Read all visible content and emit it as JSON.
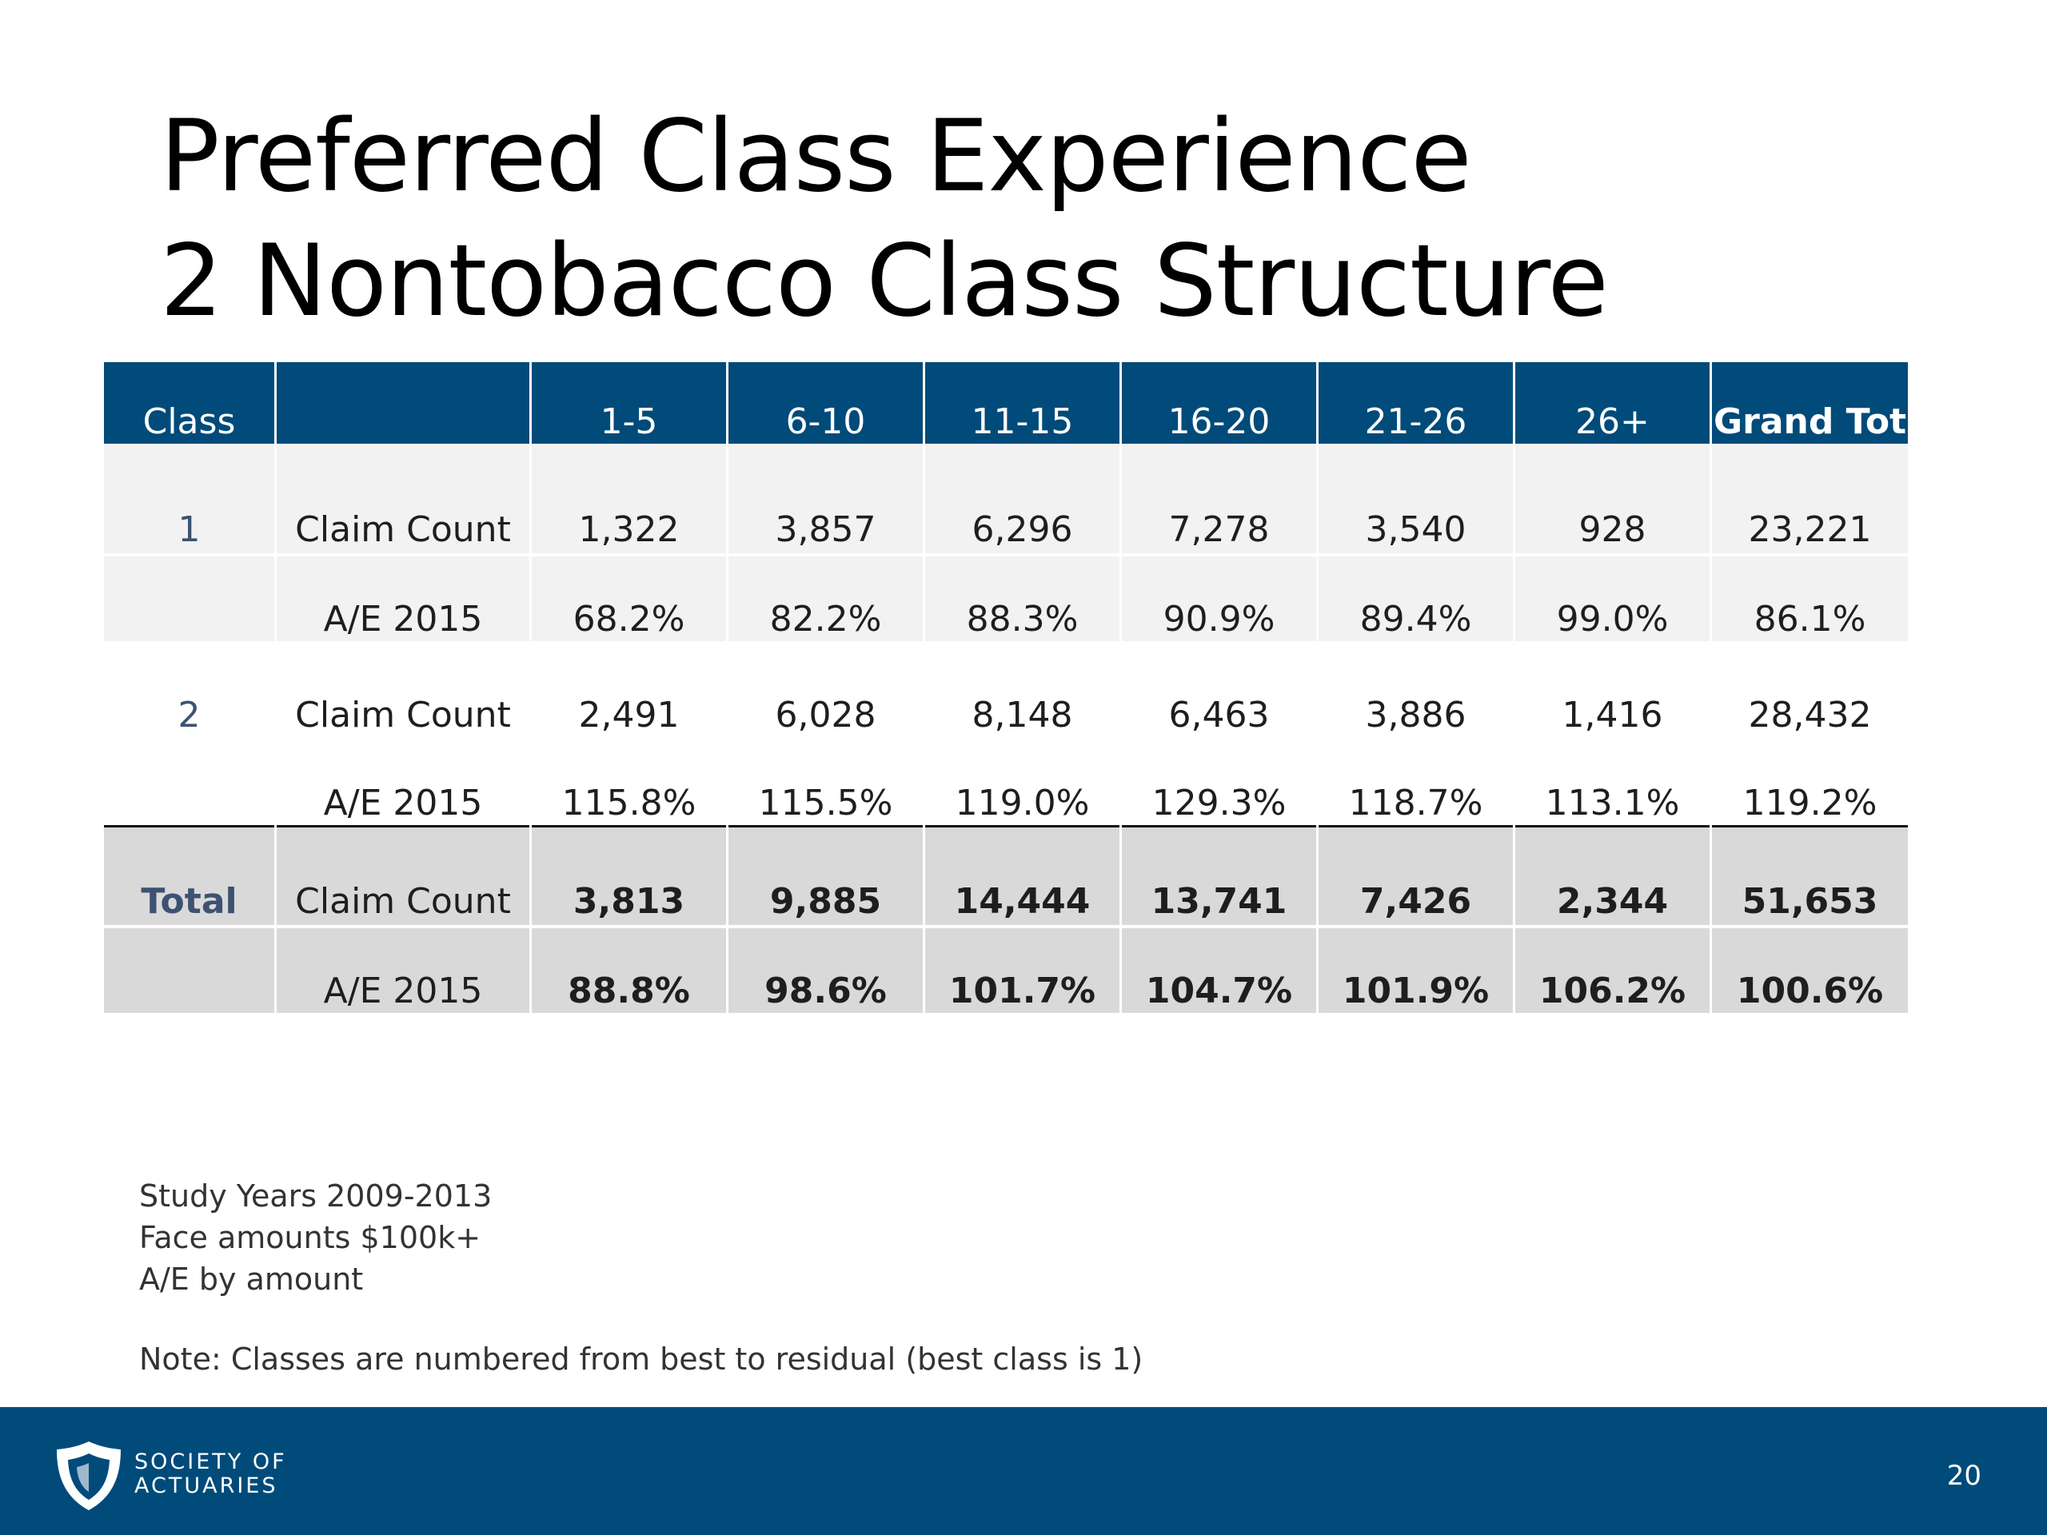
{
  "title": {
    "line1": "Preferred Class Experience",
    "line2": "2 Nontobacco Class Structure"
  },
  "table": {
    "headers": [
      "Class",
      "",
      "1-5",
      "6-10",
      "11-15",
      "16-20",
      "21-26",
      "26+",
      "Grand Total"
    ],
    "groups": [
      {
        "class": "1",
        "rows": [
          {
            "metric": "Claim Count",
            "values": [
              "1,322",
              "3,857",
              "6,296",
              "7,278",
              "3,540",
              "928",
              "23,221"
            ]
          },
          {
            "metric": "A/E 2015",
            "values": [
              "68.2%",
              "82.2%",
              "88.3%",
              "90.9%",
              "89.4%",
              "99.0%",
              "86.1%"
            ]
          }
        ]
      },
      {
        "class": "2",
        "rows": [
          {
            "metric": "Claim Count",
            "values": [
              "2,491",
              "6,028",
              "8,148",
              "6,463",
              "3,886",
              "1,416",
              "28,432"
            ]
          },
          {
            "metric": "A/E 2015",
            "values": [
              "115.8%",
              "115.5%",
              "119.0%",
              "129.3%",
              "118.7%",
              "113.1%",
              "119.2%"
            ]
          }
        ]
      },
      {
        "class": "Total",
        "rows": [
          {
            "metric": "Claim Count",
            "values": [
              "3,813",
              "9,885",
              "14,444",
              "13,741",
              "7,426",
              "2,344",
              "51,653"
            ]
          },
          {
            "metric": "A/E 2015",
            "values": [
              "88.8%",
              "98.6%",
              "101.7%",
              "104.7%",
              "101.9%",
              "106.2%",
              "100.6%"
            ]
          }
        ]
      }
    ]
  },
  "notes": {
    "line1": "Study Years 2009-2013",
    "line2": "Face amounts $100k+",
    "line3": "A/E by amount",
    "note": "Note: Classes are numbered from best to residual (best class is 1)"
  },
  "footer": {
    "org_line1": "SOCIETY OF",
    "org_line2": "ACTUARIES",
    "page_number": "20",
    "logo_icon": "shield-icon",
    "bar_color": "#004b7a"
  }
}
